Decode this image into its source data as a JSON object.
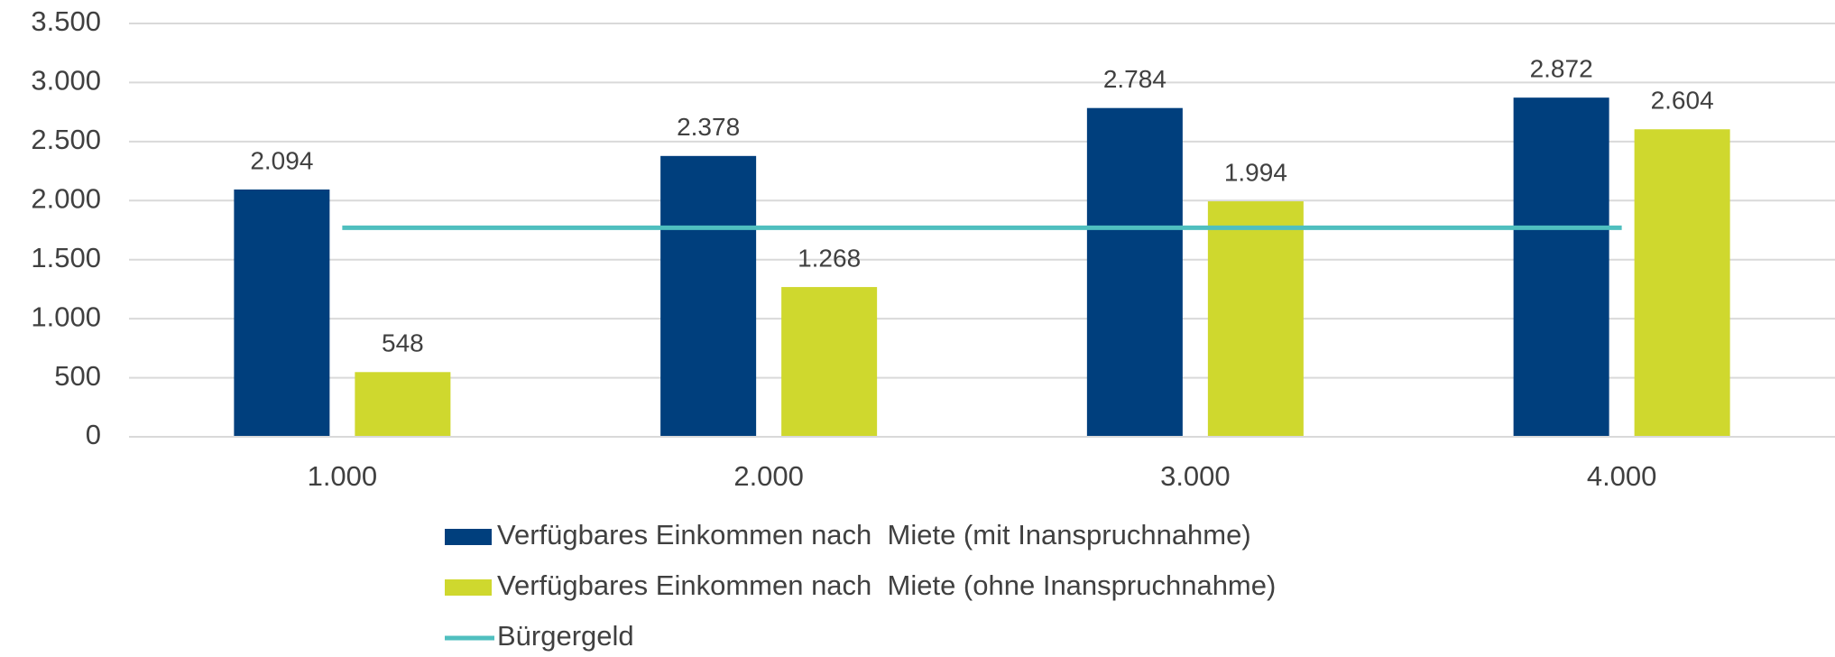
{
  "chart_data": {
    "type": "bar",
    "categories": [
      "1.000",
      "2.000",
      "3.000",
      "4.000"
    ],
    "series": [
      {
        "name": "Verfügbares Einkommen nach  Miete (mit Inanspruchnahme)",
        "color": "#003f7d",
        "values": [
          2094,
          2378,
          2784,
          2872
        ],
        "value_labels": [
          "2.094",
          "2.378",
          "2.784",
          "2.872"
        ]
      },
      {
        "name": "Verfügbares Einkommen nach  Miete (ohne Inanspruchnahme)",
        "color": "#cfd82e",
        "values": [
          548,
          1268,
          1994,
          2604
        ],
        "value_labels": [
          "548",
          "1.268",
          "1.994",
          "2.604"
        ]
      },
      {
        "name": "Bürgergeld",
        "type": "line",
        "color": "#4fbfbf",
        "values": [
          1770,
          1770,
          1770,
          1770
        ]
      }
    ],
    "ylim": [
      0,
      3500
    ],
    "yticks": [
      0,
      500,
      {
        "value": 1000,
        "label": "1.000"
      },
      {
        "value": 1500,
        "label": "1.500"
      },
      {
        "value": 2000,
        "label": "2.000"
      },
      {
        "value": 2500,
        "label": "2.500"
      },
      {
        "value": 3000,
        "label": "3.000"
      },
      {
        "value": 3500,
        "label": "3.500"
      }
    ],
    "grid": true,
    "legend": "bottom"
  }
}
